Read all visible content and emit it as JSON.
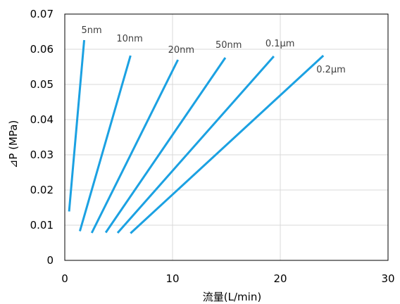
{
  "chart_data": {
    "type": "line",
    "title": "",
    "xlabel": "流量(L/min)",
    "ylabel": "⊿P (MPa)",
    "xlim": [
      0,
      30
    ],
    "ylim": [
      0,
      0.07
    ],
    "xticks": [
      0,
      10,
      20,
      30
    ],
    "xtick_labels": [
      "0",
      "10",
      "20",
      "30"
    ],
    "yticks": [
      0,
      0.01,
      0.02,
      0.03,
      0.04,
      0.05,
      0.06,
      0.07
    ],
    "ytick_labels": [
      "0",
      "0.01",
      "0.02",
      "0.03",
      "0.04",
      "0.05",
      "0.06",
      "0.07"
    ],
    "grid": true,
    "legend": "inline labels at line ends",
    "line_color": "#1ba1e2",
    "series": [
      {
        "name": "5nm",
        "x": [
          0.4,
          1.8
        ],
        "y": [
          0.0139,
          0.0626
        ]
      },
      {
        "name": "10nm",
        "x": [
          1.4,
          6.1
        ],
        "y": [
          0.0083,
          0.0582
        ]
      },
      {
        "name": "20nm",
        "x": [
          2.5,
          10.5
        ],
        "y": [
          0.0078,
          0.057
        ]
      },
      {
        "name": "50nm",
        "x": [
          3.8,
          14.9
        ],
        "y": [
          0.0079,
          0.0576
        ]
      },
      {
        "name": "0.1μm",
        "x": [
          4.9,
          19.4
        ],
        "y": [
          0.0078,
          0.058
        ]
      },
      {
        "name": "0.2μm",
        "x": [
          6.1,
          24.0
        ],
        "y": [
          0.0077,
          0.0582
        ]
      }
    ]
  }
}
